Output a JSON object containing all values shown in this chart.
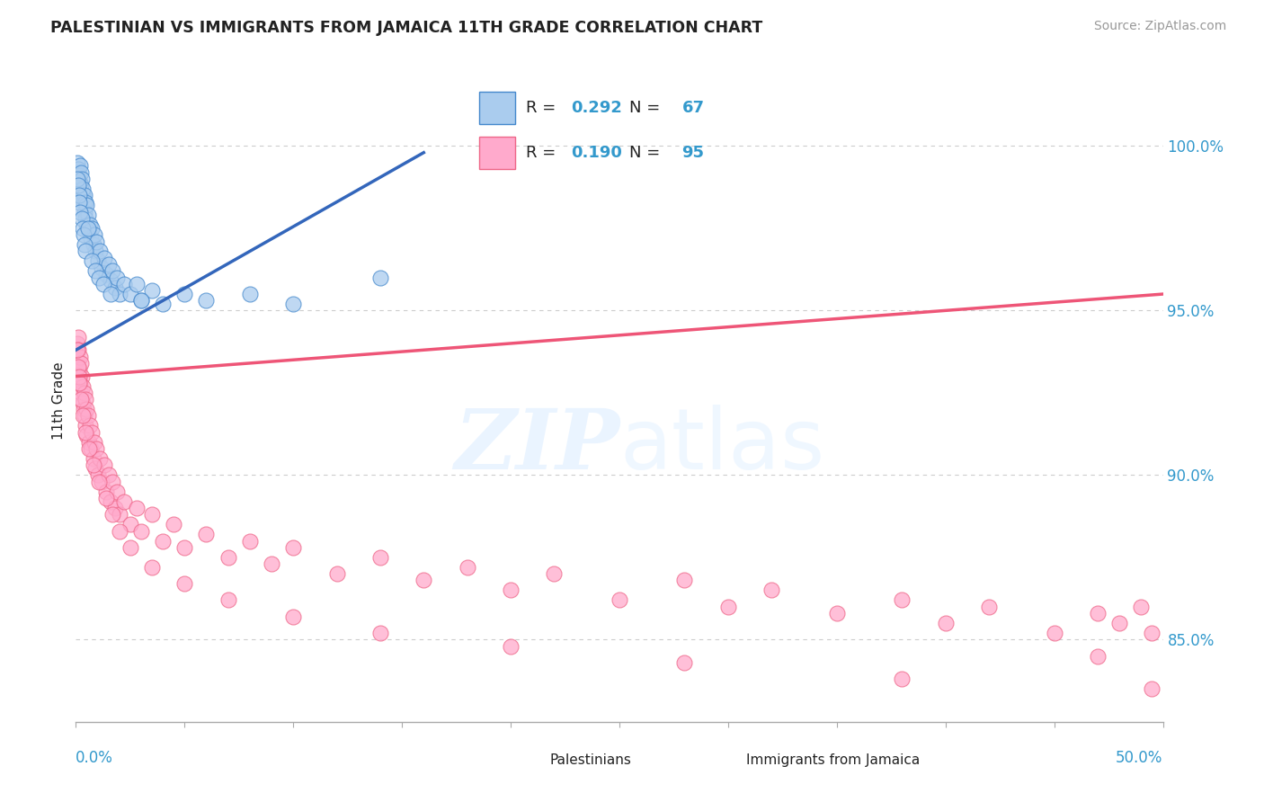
{
  "title": "PALESTINIAN VS IMMIGRANTS FROM JAMAICA 11TH GRADE CORRELATION CHART",
  "source": "Source: ZipAtlas.com",
  "ylabel": "11th Grade",
  "xlim": [
    0.0,
    50.0
  ],
  "ylim": [
    82.5,
    102.0
  ],
  "yticks": [
    85.0,
    90.0,
    95.0,
    100.0
  ],
  "ytick_labels": [
    "85.0%",
    "90.0%",
    "95.0%",
    "100.0%"
  ],
  "blue_R": 0.292,
  "blue_N": 67,
  "pink_R": 0.19,
  "pink_N": 95,
  "blue_fill": "#AACCEE",
  "pink_fill": "#FFAACC",
  "blue_edge": "#4488CC",
  "pink_edge": "#EE6688",
  "blue_line": "#3366BB",
  "pink_line": "#EE5577",
  "text_color_dark": "#222222",
  "text_color_blue": "#3399CC",
  "background": "#FFFFFF",
  "grid_color": "#CCCCCC",
  "blue_trend_x": [
    0.0,
    16.0
  ],
  "blue_trend_y": [
    93.8,
    99.8
  ],
  "pink_trend_x": [
    0.0,
    50.0
  ],
  "pink_trend_y": [
    93.0,
    95.5
  ],
  "blue_x": [
    0.05,
    0.08,
    0.1,
    0.12,
    0.15,
    0.18,
    0.2,
    0.22,
    0.25,
    0.28,
    0.3,
    0.32,
    0.35,
    0.38,
    0.4,
    0.42,
    0.45,
    0.48,
    0.5,
    0.55,
    0.6,
    0.65,
    0.7,
    0.75,
    0.8,
    0.85,
    0.9,
    0.95,
    1.0,
    1.1,
    1.2,
    1.3,
    1.4,
    1.5,
    1.6,
    1.7,
    1.8,
    1.9,
    2.0,
    2.2,
    2.5,
    2.8,
    3.0,
    3.5,
    4.0,
    5.0,
    6.0,
    8.0,
    10.0,
    14.0,
    0.06,
    0.09,
    0.13,
    0.16,
    0.21,
    0.26,
    0.31,
    0.36,
    0.41,
    0.46,
    0.55,
    0.72,
    0.88,
    1.05,
    1.25,
    1.6,
    3.0
  ],
  "blue_y": [
    99.2,
    99.5,
    99.0,
    99.3,
    99.1,
    99.4,
    98.9,
    99.2,
    98.8,
    99.0,
    98.5,
    98.7,
    98.3,
    98.5,
    98.0,
    98.3,
    97.8,
    98.2,
    97.6,
    97.9,
    97.4,
    97.6,
    97.2,
    97.5,
    97.0,
    97.3,
    96.8,
    97.1,
    96.5,
    96.8,
    96.3,
    96.6,
    96.1,
    96.4,
    95.9,
    96.2,
    95.7,
    96.0,
    95.5,
    95.8,
    95.5,
    95.8,
    95.3,
    95.6,
    95.2,
    95.5,
    95.3,
    95.5,
    95.2,
    96.0,
    99.0,
    98.8,
    98.5,
    98.3,
    98.0,
    97.8,
    97.5,
    97.3,
    97.0,
    96.8,
    97.5,
    96.5,
    96.2,
    96.0,
    95.8,
    95.5,
    95.3
  ],
  "pink_x": [
    0.05,
    0.08,
    0.1,
    0.12,
    0.15,
    0.18,
    0.2,
    0.22,
    0.25,
    0.28,
    0.3,
    0.32,
    0.35,
    0.38,
    0.4,
    0.42,
    0.45,
    0.48,
    0.5,
    0.55,
    0.6,
    0.65,
    0.7,
    0.75,
    0.8,
    0.85,
    0.9,
    0.95,
    1.0,
    1.1,
    1.2,
    1.3,
    1.4,
    1.5,
    1.6,
    1.7,
    1.8,
    1.9,
    2.0,
    2.2,
    2.5,
    2.8,
    3.0,
    3.5,
    4.0,
    4.5,
    5.0,
    6.0,
    7.0,
    8.0,
    9.0,
    10.0,
    12.0,
    14.0,
    16.0,
    18.0,
    20.0,
    22.0,
    25.0,
    28.0,
    30.0,
    32.0,
    35.0,
    38.0,
    40.0,
    42.0,
    45.0,
    47.0,
    48.0,
    49.0,
    49.5,
    0.06,
    0.09,
    0.13,
    0.16,
    0.23,
    0.33,
    0.43,
    0.6,
    0.8,
    1.05,
    1.4,
    1.7,
    2.0,
    2.5,
    3.5,
    5.0,
    7.0,
    10.0,
    14.0,
    20.0,
    28.0,
    38.0,
    47.0,
    49.5
  ],
  "pink_y": [
    94.0,
    93.5,
    94.2,
    93.8,
    93.2,
    93.6,
    92.8,
    93.4,
    92.5,
    93.0,
    92.2,
    92.7,
    92.0,
    92.5,
    91.8,
    92.3,
    91.5,
    92.0,
    91.2,
    91.8,
    91.0,
    91.5,
    90.8,
    91.3,
    90.5,
    91.0,
    90.2,
    90.8,
    90.0,
    90.5,
    89.8,
    90.3,
    89.5,
    90.0,
    89.2,
    89.8,
    89.0,
    89.5,
    88.8,
    89.2,
    88.5,
    89.0,
    88.3,
    88.8,
    88.0,
    88.5,
    87.8,
    88.2,
    87.5,
    88.0,
    87.3,
    87.8,
    87.0,
    87.5,
    86.8,
    87.2,
    86.5,
    87.0,
    86.2,
    86.8,
    86.0,
    86.5,
    85.8,
    86.2,
    85.5,
    86.0,
    85.2,
    85.8,
    85.5,
    86.0,
    85.2,
    93.8,
    93.3,
    93.0,
    92.8,
    92.3,
    91.8,
    91.3,
    90.8,
    90.3,
    89.8,
    89.3,
    88.8,
    88.3,
    87.8,
    87.2,
    86.7,
    86.2,
    85.7,
    85.2,
    84.8,
    84.3,
    83.8,
    84.5,
    83.5
  ]
}
